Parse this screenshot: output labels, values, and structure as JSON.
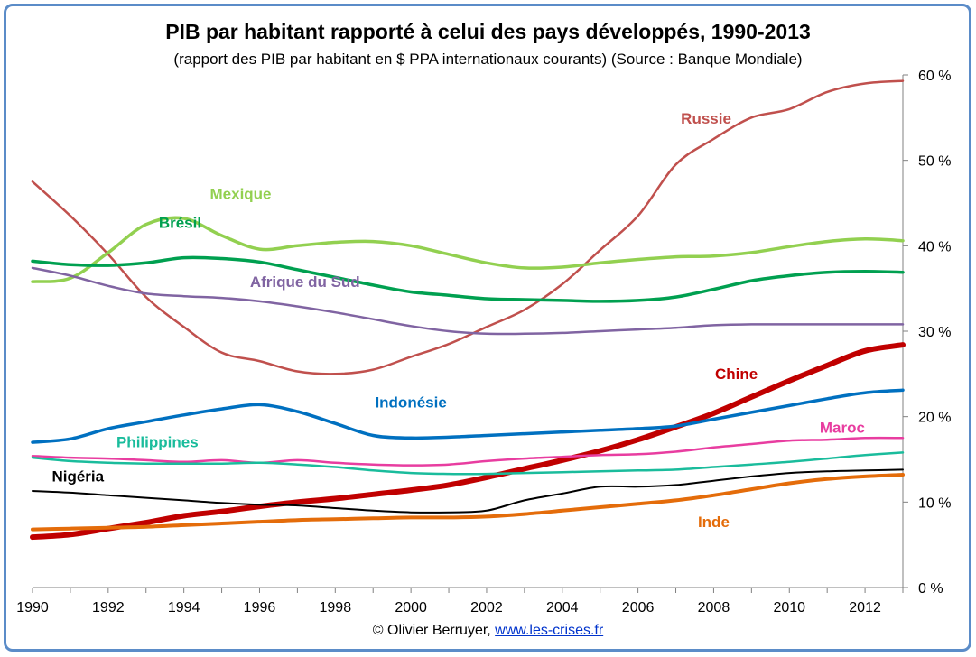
{
  "chart_data": {
    "type": "line",
    "title": "PIB par habitant  rapporté à celui des pays développés, 1990-2013",
    "subtitle": "(rapport des PIB  par habitant en $ PPA  internationaux courants) (Source : Banque Mondiale)",
    "xlabel": "",
    "ylabel": "",
    "xlim": [
      1990,
      2013
    ],
    "ylim": [
      0,
      60
    ],
    "x_ticks": [
      "1990",
      "1992",
      "1994",
      "1996",
      "1998",
      "2000",
      "2002",
      "2004",
      "2006",
      "2008",
      "2010",
      "2012"
    ],
    "y_ticks": [
      "0 %",
      "10 %",
      "20 %",
      "30 %",
      "40 %",
      "50 %",
      "60 %"
    ],
    "y_axis_side": "right",
    "grid": false,
    "legend": "inline labels",
    "x": [
      1990,
      1991,
      1992,
      1993,
      1994,
      1995,
      1996,
      1997,
      1998,
      1999,
      2000,
      2001,
      2002,
      2003,
      2004,
      2005,
      2006,
      2007,
      2008,
      2009,
      2010,
      2011,
      2012,
      2013
    ],
    "series": [
      {
        "name": "Russie",
        "color": "#c0504d",
        "width": 2.5,
        "values": [
          47.5,
          43.5,
          39,
          34,
          30.5,
          27.5,
          26.5,
          25.3,
          25,
          25.5,
          27,
          28.5,
          30.5,
          32.5,
          35.5,
          39.5,
          43.5,
          49.5,
          52.5,
          55,
          56,
          58,
          59,
          59.3
        ]
      },
      {
        "name": "Mexique",
        "color": "#92d050",
        "width": 3.5,
        "values": [
          35.8,
          36.2,
          39.2,
          42.5,
          43.2,
          41.2,
          39.6,
          40,
          40.4,
          40.5,
          40,
          39,
          38,
          37.4,
          37.5,
          38,
          38.4,
          38.7,
          38.8,
          39.2,
          39.9,
          40.5,
          40.8,
          40.6
        ]
      },
      {
        "name": "Brésil",
        "color": "#00a050",
        "width": 3.5,
        "values": [
          38.2,
          37.8,
          37.7,
          38,
          38.6,
          38.5,
          38.1,
          37.2,
          36.3,
          35.4,
          34.6,
          34.2,
          33.8,
          33.7,
          33.6,
          33.5,
          33.6,
          34,
          34.9,
          35.9,
          36.5,
          36.9,
          37,
          36.9
        ]
      },
      {
        "name": "Afrique du Sud",
        "color": "#8064a2",
        "width": 2.5,
        "values": [
          37.4,
          36.5,
          35.3,
          34.4,
          34.1,
          33.9,
          33.5,
          32.9,
          32.2,
          31.4,
          30.6,
          30,
          29.7,
          29.7,
          29.8,
          30,
          30.2,
          30.4,
          30.7,
          30.8,
          30.8,
          30.8,
          30.8,
          30.8
        ]
      },
      {
        "name": "Chine",
        "color": "#c00000",
        "width": 6,
        "values": [
          5.9,
          6.2,
          6.9,
          7.6,
          8.4,
          8.9,
          9.5,
          10,
          10.4,
          10.9,
          11.4,
          12,
          12.9,
          13.9,
          14.9,
          16,
          17.3,
          18.8,
          20.4,
          22.3,
          24.2,
          26,
          27.7,
          28.4
        ]
      },
      {
        "name": "Indonésie",
        "color": "#0070c0",
        "width": 3.5,
        "values": [
          17,
          17.4,
          18.6,
          19.4,
          20.2,
          20.9,
          21.4,
          20.6,
          19.2,
          17.8,
          17.5,
          17.6,
          17.8,
          18,
          18.2,
          18.4,
          18.6,
          18.9,
          19.7,
          20.5,
          21.3,
          22.1,
          22.8,
          23.1
        ]
      },
      {
        "name": "Maroc",
        "color": "#e83da0",
        "width": 2.5,
        "values": [
          15.4,
          15.2,
          15.1,
          14.9,
          14.7,
          14.9,
          14.6,
          14.9,
          14.6,
          14.4,
          14.3,
          14.4,
          14.8,
          15.1,
          15.3,
          15.5,
          15.6,
          15.9,
          16.4,
          16.8,
          17.2,
          17.3,
          17.5,
          17.5
        ]
      },
      {
        "name": "Philippines",
        "color": "#1abc9c",
        "width": 2.5,
        "values": [
          15.2,
          14.8,
          14.6,
          14.5,
          14.5,
          14.5,
          14.6,
          14.4,
          14.1,
          13.7,
          13.4,
          13.3,
          13.3,
          13.4,
          13.5,
          13.6,
          13.7,
          13.8,
          14.1,
          14.4,
          14.7,
          15.1,
          15.5,
          15.8
        ]
      },
      {
        "name": "Nigéria",
        "color": "#000000",
        "width": 2,
        "values": [
          11.3,
          11.1,
          10.8,
          10.5,
          10.2,
          9.9,
          9.7,
          9.6,
          9.3,
          9,
          8.8,
          8.8,
          9,
          10.2,
          11,
          11.8,
          11.8,
          12,
          12.5,
          13,
          13.4,
          13.6,
          13.7,
          13.8
        ]
      },
      {
        "name": "Inde",
        "color": "#e46c0a",
        "width": 4,
        "values": [
          6.8,
          6.9,
          7,
          7.1,
          7.3,
          7.5,
          7.7,
          7.9,
          8,
          8.1,
          8.2,
          8.2,
          8.3,
          8.6,
          9,
          9.4,
          9.8,
          10.2,
          10.8,
          11.5,
          12.2,
          12.7,
          13,
          13.2
        ]
      }
    ],
    "series_labels": [
      {
        "name": "Russie",
        "color": "#c0504d",
        "x": 2007.8,
        "y": 54.3
      },
      {
        "name": "Mexique",
        "color": "#92d050",
        "x": 1995.5,
        "y": 45.5
      },
      {
        "name": "Brésil",
        "color": "#00a050",
        "x": 1993.9,
        "y": 42.1
      },
      {
        "name": "Afrique du Sud",
        "color": "#8064a2",
        "x": 1997.2,
        "y": 35.2
      },
      {
        "name": "Chine",
        "color": "#c00000",
        "x": 2008.6,
        "y": 24.4
      },
      {
        "name": "Indonésie",
        "color": "#0070c0",
        "x": 2000,
        "y": 21.1
      },
      {
        "name": "Maroc",
        "color": "#e83da0",
        "x": 2011.4,
        "y": 18.1
      },
      {
        "name": "Philippines",
        "color": "#1abc9c",
        "x": 1993.3,
        "y": 16.4
      },
      {
        "name": "Nigéria",
        "color": "#000000",
        "x": 1991.2,
        "y": 12.4
      },
      {
        "name": "Inde",
        "color": "#e46c0a",
        "x": 2008,
        "y": 7.1
      }
    ]
  },
  "footer": {
    "prefix": "© Olivier Berruyer, ",
    "link": "www.les-crises.fr"
  }
}
